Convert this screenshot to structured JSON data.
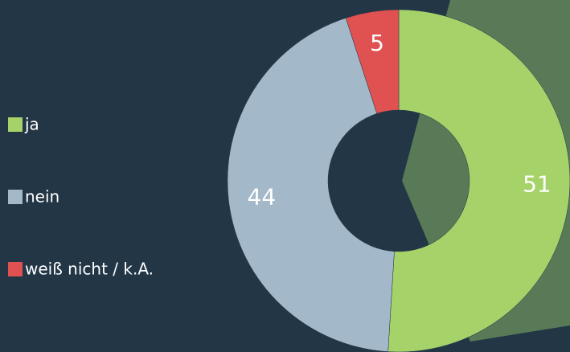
{
  "chart_data": {
    "type": "donut",
    "categories": [
      "ja",
      "nein",
      "weiß nicht / k.A."
    ],
    "values": [
      51,
      44,
      5
    ],
    "colors": [
      "#a6d26a",
      "#a3b8c9",
      "#e05252"
    ],
    "legend": "left"
  }
}
